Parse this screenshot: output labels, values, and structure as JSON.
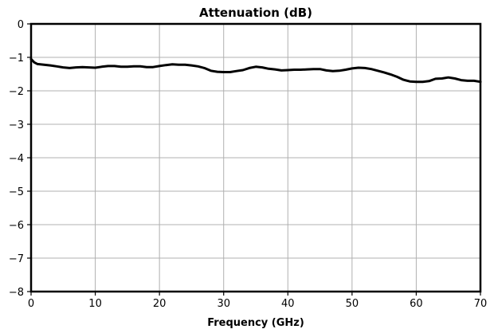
{
  "chart_data": {
    "type": "line",
    "title": "Attenuation (dB)",
    "xlabel": "Frequency (GHz)",
    "ylabel": "",
    "xlim": [
      0,
      70
    ],
    "ylim": [
      -8,
      0
    ],
    "xticks": [
      0,
      10,
      20,
      30,
      40,
      50,
      60,
      70
    ],
    "yticks": [
      0,
      -1,
      -2,
      -3,
      -4,
      -5,
      -6,
      -7,
      -8
    ],
    "xtick_labels": [
      "0",
      "10",
      "20",
      "30",
      "40",
      "50",
      "60",
      "70"
    ],
    "ytick_labels": [
      "0",
      "−1",
      "−2",
      "−3",
      "−4",
      "−5",
      "−6",
      "−7",
      "−8"
    ],
    "grid": true,
    "series": [
      {
        "color": "#000000",
        "x": [
          0,
          0.5,
          1,
          2,
          3,
          4,
          5,
          6,
          7,
          8,
          9,
          10,
          11,
          12,
          13,
          14,
          15,
          16,
          17,
          18,
          19,
          20,
          21,
          22,
          23,
          24,
          25,
          26,
          27,
          28,
          29,
          30,
          31,
          32,
          33,
          34,
          35,
          36,
          37,
          38,
          39,
          40,
          41,
          42,
          43,
          44,
          45,
          46,
          47,
          48,
          49,
          50,
          51,
          52,
          53,
          54,
          55,
          56,
          57,
          58,
          59,
          60,
          61,
          62,
          63,
          64,
          65,
          66,
          67,
          68,
          69,
          70
        ],
        "values": [
          -1.05,
          -1.15,
          -1.2,
          -1.22,
          -1.24,
          -1.27,
          -1.3,
          -1.32,
          -1.3,
          -1.29,
          -1.3,
          -1.31,
          -1.28,
          -1.26,
          -1.26,
          -1.28,
          -1.28,
          -1.27,
          -1.27,
          -1.29,
          -1.29,
          -1.26,
          -1.23,
          -1.21,
          -1.22,
          -1.22,
          -1.24,
          -1.27,
          -1.32,
          -1.4,
          -1.43,
          -1.44,
          -1.44,
          -1.41,
          -1.38,
          -1.32,
          -1.28,
          -1.3,
          -1.34,
          -1.36,
          -1.39,
          -1.38,
          -1.37,
          -1.37,
          -1.36,
          -1.35,
          -1.35,
          -1.39,
          -1.41,
          -1.4,
          -1.37,
          -1.33,
          -1.31,
          -1.32,
          -1.35,
          -1.4,
          -1.45,
          -1.51,
          -1.58,
          -1.67,
          -1.72,
          -1.73,
          -1.73,
          -1.71,
          -1.64,
          -1.63,
          -1.6,
          -1.63,
          -1.68,
          -1.7,
          -1.7,
          -1.73
        ]
      }
    ]
  }
}
